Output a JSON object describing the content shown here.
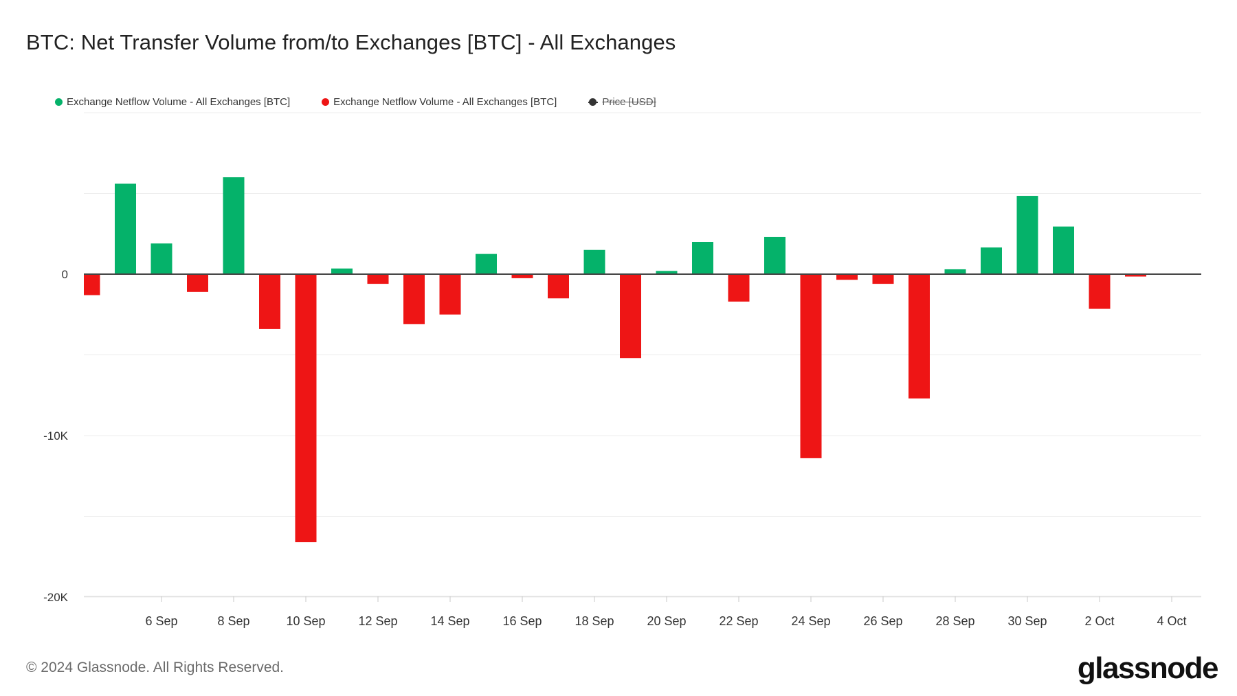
{
  "title": "BTC: Net Transfer Volume from/to Exchanges [BTC] - All Exchanges",
  "legend": [
    {
      "label": "Exchange Netflow Volume - All Exchanges [BTC]",
      "color": "#05b26a",
      "enabled": true
    },
    {
      "label": "Exchange Netflow Volume - All Exchanges [BTC]",
      "color": "#ee1515",
      "enabled": true
    },
    {
      "label": "Price [USD]",
      "color": "#333333",
      "enabled": false
    }
  ],
  "footer": {
    "copyright": "© 2024 Glassnode. All Rights Reserved.",
    "logo": "glassnode"
  },
  "chart_data": {
    "type": "bar",
    "positive_color": "#05b26a",
    "negative_color": "#ee1515",
    "ylim": [
      -20000,
      10000
    ],
    "y_ticks": [
      {
        "value": 0,
        "label": "0"
      },
      {
        "value": -10000,
        "label": "-10K"
      },
      {
        "value": -20000,
        "label": "-20K"
      }
    ],
    "grid": true,
    "legend_position": "top-left",
    "x_tick_labels": [
      "6 Sep",
      "8 Sep",
      "10 Sep",
      "12 Sep",
      "14 Sep",
      "16 Sep",
      "18 Sep",
      "20 Sep",
      "22 Sep",
      "24 Sep",
      "26 Sep",
      "28 Sep",
      "30 Sep",
      "2 Oct",
      "4 Oct"
    ],
    "categories": [
      "4 Sep",
      "5 Sep",
      "6 Sep",
      "7 Sep",
      "8 Sep",
      "9 Sep",
      "10 Sep",
      "11 Sep",
      "12 Sep",
      "13 Sep",
      "14 Sep",
      "15 Sep",
      "16 Sep",
      "17 Sep",
      "18 Sep",
      "19 Sep",
      "20 Sep",
      "21 Sep",
      "22 Sep",
      "23 Sep",
      "24 Sep",
      "25 Sep",
      "26 Sep",
      "27 Sep",
      "28 Sep",
      "29 Sep",
      "30 Sep",
      "1 Oct",
      "2 Oct",
      "3 Oct"
    ],
    "values": [
      -1300,
      5600,
      1900,
      -1100,
      6000,
      -3400,
      -16600,
      350,
      -600,
      -3100,
      -2500,
      1250,
      -250,
      -1500,
      1500,
      -5200,
      200,
      2000,
      -1700,
      2300,
      -11400,
      -350,
      -600,
      -7700,
      300,
      1650,
      4850,
      2950,
      -2150,
      -150
    ]
  }
}
